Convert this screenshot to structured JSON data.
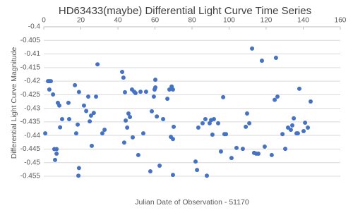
{
  "chart_data": {
    "type": "scatter",
    "title": "HD63433(maybe) Differential Light Curve Time Series",
    "x_label": "Julian Date of Observation - 51170",
    "y_label": "Differential Light Curve Magnitude",
    "color": "#4472c4",
    "grid": true,
    "xlim": [
      0,
      160
    ],
    "xticks": [
      0,
      20,
      40,
      60,
      80,
      100,
      120,
      140,
      160
    ],
    "ylim": [
      -0.455,
      -0.4
    ],
    "yticks": [
      -0.4,
      -0.405,
      -0.41,
      -0.415,
      -0.42,
      -0.425,
      -0.43,
      -0.435,
      -0.44,
      -0.445,
      -0.45,
      -0.455
    ],
    "x": [
      0.8,
      2.3,
      3,
      3.8,
      3,
      5,
      5.7,
      6.9,
      6.1,
      6.9,
      7.6,
      8.4,
      9.9,
      8.8,
      13.3,
      13.7,
      16.8,
      17.5,
      18.3,
      19,
      18.7,
      19,
      21.7,
      22.9,
      24,
      24.8,
      25.5,
      25.9,
      27,
      28.2,
      29,
      31.6,
      32.8,
      42.3,
      43,
      43.8,
      44.2,
      43.4,
      45,
      45.7,
      46.5,
      47.6,
      48,
      48.8,
      49.5,
      51,
      52.2,
      53.7,
      55.2,
      57.5,
      58.3,
      59.4,
      59.8,
      60.2,
      60.2,
      61,
      62.5,
      64.4,
      66.7,
      67.8,
      69,
      69.7,
      70.1,
      69.7,
      69.7,
      68.6,
      81.9,
      82.7,
      83.4,
      85.7,
      87.2,
      88,
      89.5,
      90.3,
      91,
      91.8,
      94.1,
      95.6,
      96.8,
      97.5,
      98.3,
      101.3,
      104,
      107.4,
      109,
      109.7,
      110.9,
      112.4,
      113.5,
      114.7,
      115.8,
      117.7,
      119.2,
      123,
      124.6,
      125.3,
      126.1,
      128.8,
      130.3,
      131.8,
      133.3,
      134.1,
      134.9,
      136.4,
      137.1,
      137.9,
      140.2,
      141,
      142.5,
      144
    ],
    "values": [
      -0.4392,
      -0.42,
      -0.42,
      -0.42,
      -0.4231,
      -0.4249,
      -0.445,
      -0.445,
      -0.449,
      -0.4467,
      -0.428,
      -0.429,
      -0.434,
      -0.437,
      -0.428,
      -0.434,
      -0.4215,
      -0.4392,
      -0.436,
      -0.452,
      -0.4548,
      -0.424,
      -0.429,
      -0.431,
      -0.4257,
      -0.4348,
      -0.4327,
      -0.4438,
      -0.4317,
      -0.4257,
      -0.4138,
      -0.4392,
      -0.4379,
      -0.4166,
      -0.4187,
      -0.4241,
      -0.4345,
      -0.4426,
      -0.4371,
      -0.4319,
      -0.4332,
      -0.4231,
      -0.4407,
      -0.4239,
      -0.4244,
      -0.4472,
      -0.4239,
      -0.4392,
      -0.4239,
      -0.4532,
      -0.4311,
      -0.4257,
      -0.4231,
      -0.4195,
      -0.4223,
      -0.433,
      -0.4511,
      -0.434,
      -0.4265,
      -0.4231,
      -0.422,
      -0.4231,
      -0.4368,
      -0.4413,
      -0.4545,
      -0.4405,
      -0.4496,
      -0.4527,
      -0.4371,
      -0.4355,
      -0.434,
      -0.4548,
      -0.4355,
      -0.4343,
      -0.4397,
      -0.434,
      -0.4355,
      -0.4459,
      -0.4259,
      -0.4395,
      -0.4395,
      -0.4483,
      -0.4446,
      -0.4449,
      -0.4368,
      -0.4319,
      -0.4355,
      -0.408,
      -0.4464,
      -0.4467,
      -0.4467,
      -0.4125,
      -0.4441,
      -0.4472,
      -0.4269,
      -0.4114,
      -0.4257,
      -0.4395,
      -0.4449,
      -0.4371,
      -0.4379,
      -0.4363,
      -0.4337,
      -0.4392,
      -0.4392,
      -0.4228,
      -0.4384,
      -0.4353,
      -0.4371,
      -0.4275
    ]
  }
}
